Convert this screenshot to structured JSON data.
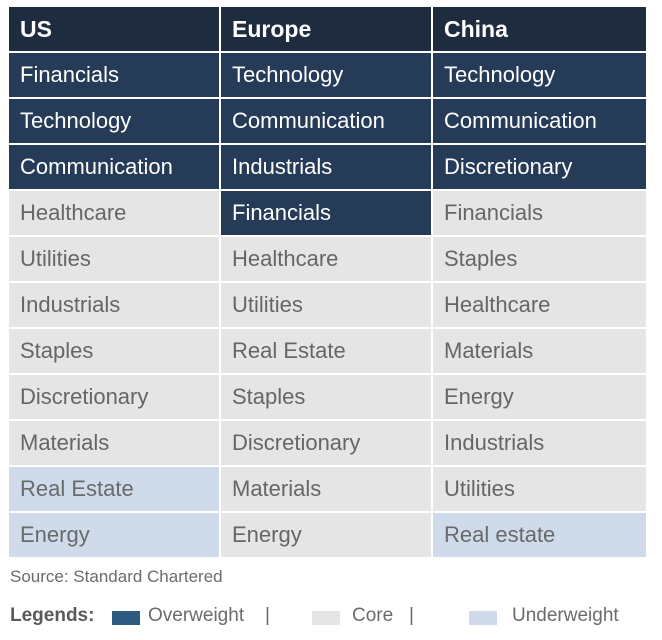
{
  "table": {
    "headers": [
      "US",
      "Europe",
      "China"
    ],
    "rows": [
      [
        {
          "text": "Financials",
          "status": "overweight"
        },
        {
          "text": "Technology",
          "status": "overweight"
        },
        {
          "text": "Technology",
          "status": "overweight"
        }
      ],
      [
        {
          "text": "Technology",
          "status": "overweight"
        },
        {
          "text": "Communication",
          "status": "overweight"
        },
        {
          "text": "Communication",
          "status": "overweight"
        }
      ],
      [
        {
          "text": "Communication",
          "status": "overweight"
        },
        {
          "text": "Industrials",
          "status": "overweight"
        },
        {
          "text": "Discretionary",
          "status": "overweight"
        }
      ],
      [
        {
          "text": "Healthcare",
          "status": "core"
        },
        {
          "text": "Financials",
          "status": "overweight"
        },
        {
          "text": "Financials",
          "status": "core"
        }
      ],
      [
        {
          "text": "Utilities",
          "status": "core"
        },
        {
          "text": "Healthcare",
          "status": "core"
        },
        {
          "text": "Staples",
          "status": "core"
        }
      ],
      [
        {
          "text": "Industrials",
          "status": "core"
        },
        {
          "text": "Utilities",
          "status": "core"
        },
        {
          "text": "Healthcare",
          "status": "core"
        }
      ],
      [
        {
          "text": "Staples",
          "status": "core"
        },
        {
          "text": "Real Estate",
          "status": "core"
        },
        {
          "text": "Materials",
          "status": "core"
        }
      ],
      [
        {
          "text": "Discretionary",
          "status": "core"
        },
        {
          "text": "Staples",
          "status": "core"
        },
        {
          "text": "Energy",
          "status": "core"
        }
      ],
      [
        {
          "text": "Materials",
          "status": "core"
        },
        {
          "text": "Discretionary",
          "status": "core"
        },
        {
          "text": "Industrials",
          "status": "core"
        }
      ],
      [
        {
          "text": "Real Estate",
          "status": "underweight"
        },
        {
          "text": "Materials",
          "status": "core"
        },
        {
          "text": "Utilities",
          "status": "core"
        }
      ],
      [
        {
          "text": "Energy",
          "status": "underweight"
        },
        {
          "text": "Energy",
          "status": "core"
        },
        {
          "text": "Real estate",
          "status": "underweight"
        }
      ]
    ]
  },
  "source": "Source: Standard Chartered",
  "legend": {
    "label": "Legends:",
    "overweight": "Overweight",
    "core": "Core",
    "underweight": "Underweight",
    "separator": "|"
  },
  "colors": {
    "header": "#1f2b3f",
    "overweight": "#253b58",
    "core": "#e5e5e5",
    "underweight": "#cfdaea",
    "legend_overweight_swatch": "#2d5a80"
  }
}
